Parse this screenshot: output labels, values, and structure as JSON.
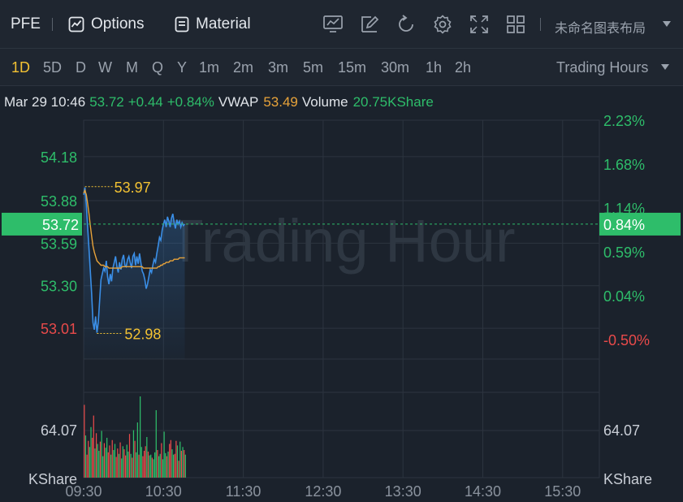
{
  "toolbar": {
    "symbol": "PFE",
    "options_label": "Options",
    "material_label": "Material",
    "layout_name": "未命名图表布局",
    "icons": [
      "chart-icon",
      "draw-icon",
      "refresh-icon",
      "gear-icon",
      "fullscreen-icon",
      "grid-layout-icon"
    ]
  },
  "periods": {
    "items": [
      "1D",
      "5D",
      "D",
      "W",
      "M",
      "Q",
      "Y",
      "1m",
      "2m",
      "3m",
      "5m",
      "15m",
      "30m",
      "1h",
      "2h"
    ],
    "active": "1D",
    "session_label": "Trading Hours"
  },
  "info": {
    "datetime": "Mar 29 10:46",
    "price": "53.72",
    "change": "+0.44",
    "change_pct": "+0.84%",
    "vwap_label": "VWAP",
    "vwap_value": "53.49",
    "volume_label": "Volume",
    "volume_value": "20.75KShare"
  },
  "watermark": "Trading Hour",
  "colors": {
    "up": "#2ebd6a",
    "down": "#e84a4a",
    "price_line": "#3a8ee6",
    "vwap_line": "#e8a33a",
    "annotation": "#f3c233",
    "current_tag": "#2ebd6a"
  },
  "chart_data": {
    "type": "line",
    "x_ticks": [
      "09:30",
      "10:30",
      "11:30",
      "12:30",
      "13:30",
      "14:30",
      "15:30"
    ],
    "y_left_ticks": [
      "54.18",
      "53.88",
      "53.59",
      "53.30",
      "53.01"
    ],
    "y_right_ticks": [
      "2.23%",
      "1.68%",
      "1.14%",
      "0.59%",
      "0.04%",
      "-0.50%"
    ],
    "y_range": [
      52.8,
      54.34
    ],
    "current_price": "53.72",
    "current_pct": "0.84%",
    "high_label": "53.97",
    "low_label": "52.98",
    "high": 53.97,
    "low": 52.98,
    "series": [
      {
        "name": "Price",
        "times": [
          "09:30",
          "09:31",
          "09:32",
          "09:33",
          "09:34",
          "09:35",
          "09:36",
          "09:37",
          "09:38",
          "09:39",
          "09:40",
          "09:41",
          "09:42",
          "09:43",
          "09:44",
          "09:45",
          "09:46",
          "09:47",
          "09:48",
          "09:49",
          "09:50",
          "09:51",
          "09:52",
          "09:53",
          "09:54",
          "09:55",
          "09:56",
          "09:57",
          "09:58",
          "09:59",
          "10:00",
          "10:01",
          "10:02",
          "10:03",
          "10:04",
          "10:05",
          "10:06",
          "10:07",
          "10:08",
          "10:09",
          "10:10",
          "10:11",
          "10:12",
          "10:13",
          "10:14",
          "10:15",
          "10:16",
          "10:17",
          "10:18",
          "10:19",
          "10:20",
          "10:21",
          "10:22",
          "10:23",
          "10:24",
          "10:25",
          "10:26",
          "10:27",
          "10:28",
          "10:29",
          "10:30",
          "10:31",
          "10:32",
          "10:33",
          "10:34",
          "10:35",
          "10:36",
          "10:37",
          "10:38",
          "10:39",
          "10:40",
          "10:41",
          "10:42",
          "10:43",
          "10:44",
          "10:45",
          "10:46"
        ],
        "values": [
          53.92,
          53.97,
          53.85,
          53.7,
          53.55,
          53.4,
          53.25,
          53.05,
          53.0,
          53.09,
          52.98,
          53.05,
          53.2,
          53.34,
          53.38,
          53.42,
          53.4,
          53.47,
          53.36,
          53.31,
          53.38,
          53.33,
          53.42,
          53.46,
          53.5,
          53.43,
          53.39,
          53.46,
          53.41,
          53.48,
          53.51,
          53.44,
          53.43,
          53.48,
          53.5,
          53.46,
          53.42,
          53.5,
          53.52,
          53.44,
          53.5,
          53.45,
          53.52,
          53.46,
          53.4,
          53.38,
          53.34,
          53.28,
          53.31,
          53.36,
          53.41,
          53.39,
          53.44,
          53.48,
          53.46,
          53.52,
          53.57,
          53.63,
          53.61,
          53.68,
          53.72,
          53.75,
          53.7,
          53.77,
          53.74,
          53.7,
          53.76,
          53.79,
          53.73,
          53.69,
          53.75,
          53.72,
          53.74,
          53.7,
          53.73,
          53.71,
          53.72
        ]
      },
      {
        "name": "VWAP",
        "values": [
          53.93,
          53.95,
          53.92,
          53.86,
          53.79,
          53.71,
          53.64,
          53.57,
          53.53,
          53.5,
          53.47,
          53.46,
          53.45,
          53.44,
          53.44,
          53.44,
          53.43,
          53.43,
          53.43,
          53.42,
          53.42,
          53.42,
          53.42,
          53.42,
          53.42,
          53.42,
          53.42,
          53.42,
          53.42,
          53.43,
          53.43,
          53.43,
          53.43,
          53.43,
          53.43,
          53.43,
          53.43,
          53.43,
          53.43,
          53.43,
          53.43,
          53.43,
          53.43,
          53.43,
          53.43,
          53.42,
          53.42,
          53.42,
          53.42,
          53.42,
          53.42,
          53.42,
          53.42,
          53.42,
          53.42,
          53.42,
          53.43,
          53.43,
          53.44,
          53.44,
          53.45,
          53.45,
          53.46,
          53.46,
          53.46,
          53.47,
          53.47,
          53.47,
          53.48,
          53.48,
          53.48,
          53.48,
          53.49,
          53.49,
          53.49,
          53.49,
          53.49
        ]
      }
    ],
    "volume": {
      "axis_top": "64.07",
      "unit": "KShare",
      "values": [
        95,
        55,
        30,
        48,
        40,
        66,
        52,
        81,
        38,
        58,
        44,
        35,
        47,
        61,
        28,
        45,
        39,
        52,
        33,
        42,
        30,
        49,
        36,
        44,
        27,
        38,
        31,
        46,
        25,
        41,
        37,
        29,
        43,
        34,
        57,
        31,
        26,
        62,
        48,
        33,
        72,
        30,
        106,
        40,
        28,
        35,
        41,
        53,
        34,
        29,
        30,
        26,
        24,
        33,
        88,
        36,
        28,
        31,
        45,
        24,
        60,
        32,
        28,
        34,
        44,
        49,
        37,
        30,
        31,
        48,
        42,
        22,
        47,
        35,
        40,
        36,
        30
      ],
      "up_flags": [
        0,
        1,
        0,
        0,
        1,
        1,
        0,
        0,
        1,
        0,
        1,
        1,
        0,
        1,
        1,
        0,
        1,
        1,
        0,
        0,
        1,
        0,
        1,
        1,
        0,
        0,
        1,
        0,
        1,
        1,
        0,
        0,
        1,
        1,
        0,
        1,
        0,
        1,
        0,
        1,
        1,
        0,
        1,
        1,
        0,
        0,
        0,
        1,
        0,
        1,
        1,
        0,
        1,
        1,
        1,
        0,
        1,
        1,
        0,
        1,
        1,
        1,
        0,
        1,
        0,
        0,
        1,
        1,
        0,
        0,
        1,
        0,
        1,
        0,
        1,
        0,
        1
      ]
    }
  }
}
